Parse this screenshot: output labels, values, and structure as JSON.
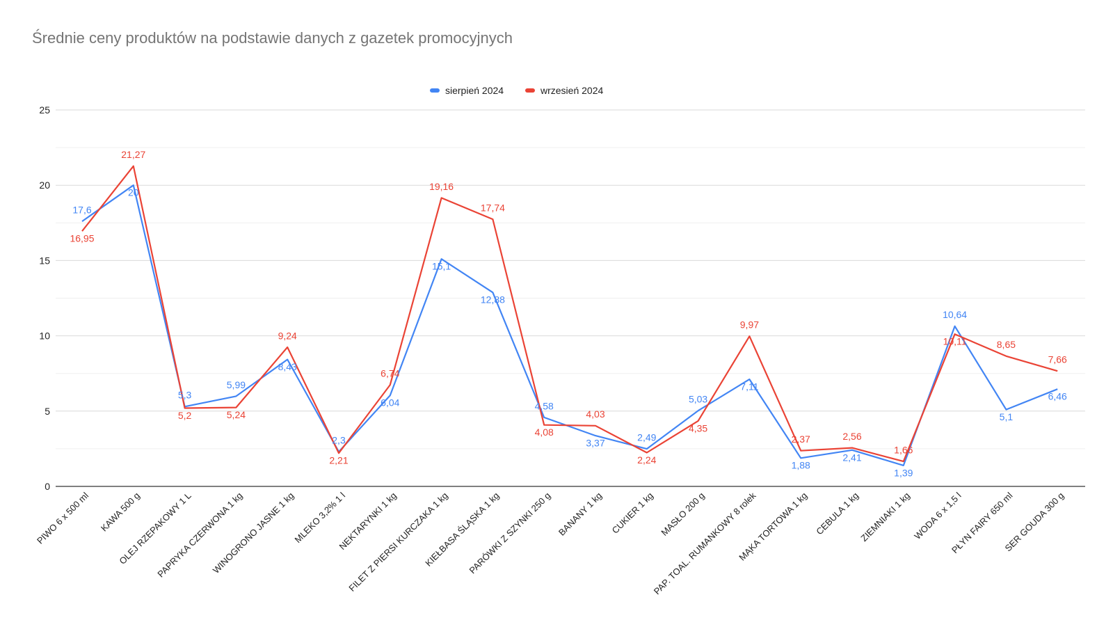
{
  "chart_data": {
    "type": "line",
    "title": "Średnie ceny produktów na podstawie danych z gazetek promocyjnych",
    "xlabel": "",
    "ylabel": "",
    "ylim": [
      0,
      25
    ],
    "y_ticks": [
      "0",
      "5",
      "10",
      "15",
      "20",
      "25"
    ],
    "y_tick_values": [
      0,
      5,
      10,
      15,
      20,
      25
    ],
    "minor_gridlines": true,
    "legend_position": "top-center",
    "categories": [
      "PIWO 6 x 500 ml",
      "KAWA 500 g",
      "OLEJ RZEPAKOWY 1 L",
      "PAPRYKA CZERWONA 1 kg",
      "WINOGRONO JASNE 1 kg",
      "MLEKO 3,2% 1 l",
      "NEKTARYNKI 1 kg",
      "FILET Z PIERSI KURCZAKA 1 kg",
      "KIEŁBASA ŚLĄSKA 1 kg",
      "PARÓWKI Z SZYNKI 250 g",
      "BANANY 1 kg",
      "CUKIER 1 kg",
      "MASŁO 200 g",
      "PAP. TOAL. RUMANKOWY 8 rolek",
      "MĄKA TORTOWA 1 kg",
      "CEBULA 1 kg",
      "ZIEMNIAKI 1 kg",
      "WODA 6 x 1,5 l",
      "PŁYN FAIRY 650 ml",
      "SER GOUDA 300 g"
    ],
    "series": [
      {
        "name": "sierpień 2024",
        "color": "#4285f4",
        "values": [
          17.6,
          20,
          5.3,
          5.99,
          8.43,
          2.3,
          6.04,
          15.1,
          12.88,
          4.58,
          3.37,
          2.49,
          5.03,
          7.11,
          1.88,
          2.41,
          1.39,
          10.64,
          5.1,
          6.46
        ],
        "labels": [
          "17,6",
          "20",
          "5,3",
          "5,99",
          "8,43",
          "2,3",
          "6,04",
          "15,1",
          "12,88",
          "4,58",
          "3,37",
          "2,49",
          "5,03",
          "7,11",
          "1,88",
          "2,41",
          "1,39",
          "10,64",
          "5,1",
          "6,46"
        ]
      },
      {
        "name": "wrzesień 2024",
        "color": "#ea4335",
        "values": [
          16.95,
          21.27,
          5.2,
          5.24,
          9.24,
          2.21,
          6.74,
          19.16,
          17.74,
          4.08,
          4.03,
          2.24,
          4.35,
          9.97,
          2.37,
          2.56,
          1.66,
          10.11,
          8.65,
          7.66
        ],
        "labels": [
          "16,95",
          "21,27",
          "5,2",
          "5,24",
          "9,24",
          "2,21",
          "6,74",
          "19,16",
          "17,74",
          "4,08",
          "4,03",
          "2,24",
          "4,35",
          "9,97",
          "2,37",
          "2,56",
          "1,66",
          "10,11",
          "8,65",
          "7,66"
        ]
      }
    ]
  }
}
